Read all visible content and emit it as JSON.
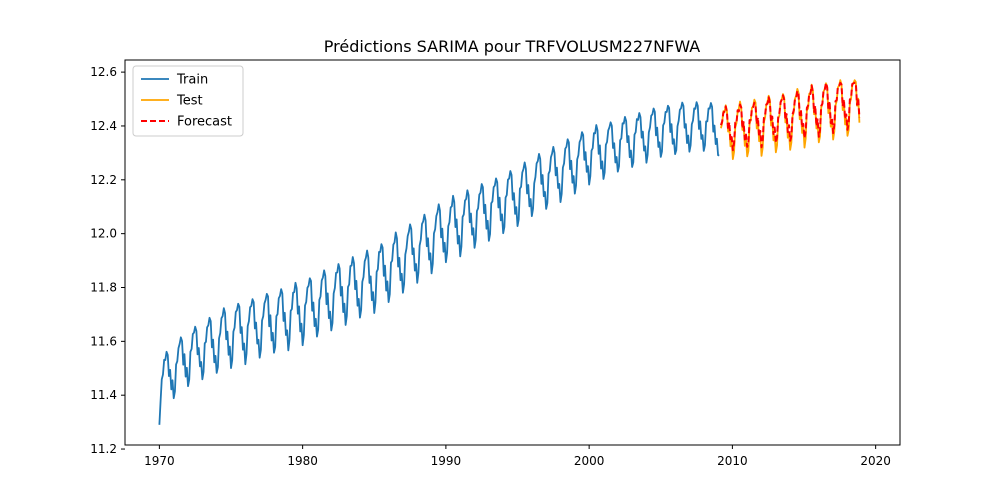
{
  "chart_data": {
    "type": "line",
    "title": "Prédictions SARIMA pour TRFVOLUSM227NFWA",
    "xlabel": "",
    "ylabel": "",
    "xlim": [
      1967.6,
      2021.7
    ],
    "ylim": [
      11.215,
      12.645
    ],
    "x_ticks": [
      1970,
      1980,
      1990,
      2000,
      2010,
      2020
    ],
    "x_tick_labels": [
      "1970",
      "1980",
      "1990",
      "2000",
      "2010",
      "2020"
    ],
    "y_ticks": [
      11.2,
      11.4,
      11.6,
      11.8,
      12.0,
      12.2,
      12.4,
      12.6
    ],
    "y_tick_labels": [
      "11.2",
      "11.4",
      "11.6",
      "11.8",
      "12.0",
      "12.2",
      "12.4",
      "12.6"
    ],
    "grid": false,
    "legend_position": "upper-left",
    "series": [
      {
        "name": "Train",
        "color": "#1f77b4",
        "style": "solid",
        "annual_points": [
          {
            "year": 1970,
            "level": 11.45,
            "amplitude": 0.19
          },
          {
            "year": 1972,
            "level": 11.55,
            "amplitude": 0.21
          },
          {
            "year": 1975,
            "level": 11.63,
            "amplitude": 0.23
          },
          {
            "year": 1980,
            "level": 11.72,
            "amplitude": 0.24
          },
          {
            "year": 1985,
            "level": 11.84,
            "amplitude": 0.24
          },
          {
            "year": 1990,
            "level": 12.02,
            "amplitude": 0.23
          },
          {
            "year": 1995,
            "level": 12.15,
            "amplitude": 0.22
          },
          {
            "year": 2000,
            "level": 12.3,
            "amplitude": 0.21
          },
          {
            "year": 2005,
            "level": 12.39,
            "amplitude": 0.19
          },
          {
            "year": 2008,
            "level": 12.41,
            "amplitude": 0.19
          },
          {
            "year": 2009,
            "level": 12.39,
            "amplitude": 0.18
          }
        ],
        "start_value": 11.29,
        "min_value": 11.26,
        "max_value": 12.51,
        "end_value": 12.29,
        "x_start": 1970,
        "x_end": 2009.1
      },
      {
        "name": "Test",
        "color": "#ffa500",
        "style": "solid",
        "annual_points": [
          {
            "year": 2009,
            "level": 12.39,
            "amplitude": 0.2
          },
          {
            "year": 2010,
            "level": 12.39,
            "amplitude": 0.2
          },
          {
            "year": 2012,
            "level": 12.41,
            "amplitude": 0.21
          },
          {
            "year": 2014,
            "level": 12.43,
            "amplitude": 0.22
          },
          {
            "year": 2016,
            "level": 12.46,
            "amplitude": 0.22
          },
          {
            "year": 2018,
            "level": 12.48,
            "amplitude": 0.22
          },
          {
            "year": 2019,
            "level": 12.49,
            "amplitude": 0.22
          }
        ],
        "min_value": 12.26,
        "max_value": 12.57,
        "x_start": 2009.2,
        "x_end": 2018.9
      },
      {
        "name": "Forecast",
        "color": "#ff0000",
        "style": "dashed",
        "annual_points": [
          {
            "year": 2009,
            "level": 12.4,
            "amplitude": 0.16
          },
          {
            "year": 2010,
            "level": 12.4,
            "amplitude": 0.16
          },
          {
            "year": 2012,
            "level": 12.42,
            "amplitude": 0.17
          },
          {
            "year": 2014,
            "level": 12.44,
            "amplitude": 0.18
          },
          {
            "year": 2016,
            "level": 12.47,
            "amplitude": 0.19
          },
          {
            "year": 2018,
            "level": 12.49,
            "amplitude": 0.2
          },
          {
            "year": 2019,
            "level": 12.5,
            "amplitude": 0.2
          }
        ],
        "min_value": 12.29,
        "max_value": 12.56,
        "x_start": 2009.2,
        "x_end": 2018.9
      }
    ]
  }
}
